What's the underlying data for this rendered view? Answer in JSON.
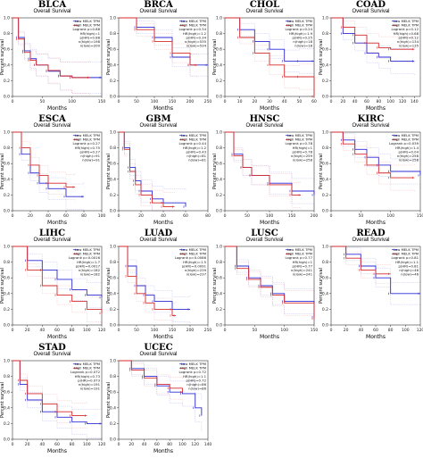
{
  "chart_data": [
    {
      "type": "line",
      "title": "BLCA",
      "subtitle": "Overall Survival",
      "xlabel": "Months",
      "ylabel": "Percent survival",
      "xlim": [
        0,
        150
      ],
      "ylim": [
        0,
        1
      ],
      "xticks": [
        0,
        50,
        100,
        150
      ],
      "yticks": [
        0,
        0.2,
        0.4,
        0.6,
        0.8,
        1.0
      ],
      "legend": [
        "Low MELK TPM",
        "High MELK TPM",
        "Logrank p=0.88",
        "HR(high)=1",
        "p(HR)=0.88",
        "n(high)=198",
        "n(low)=200"
      ],
      "series": [
        {
          "name": "Low MELK TPM",
          "color": "#2b2bd6",
          "x": [
            0,
            10,
            20,
            30,
            40,
            60,
            80,
            100,
            150
          ],
          "y": [
            1,
            0.75,
            0.58,
            0.48,
            0.4,
            0.32,
            0.26,
            0.24,
            0.24
          ]
        },
        {
          "name": "High MELK TPM",
          "color": "#d62b2b",
          "x": [
            0,
            10,
            20,
            30,
            40,
            60,
            80,
            100,
            130
          ],
          "y": [
            1,
            0.73,
            0.56,
            0.46,
            0.4,
            0.33,
            0.26,
            0.24,
            0.24
          ]
        }
      ]
    },
    {
      "type": "line",
      "title": "BRCA",
      "subtitle": "Overall Survival",
      "xlabel": "Months",
      "ylabel": "Percent survival",
      "xlim": [
        0,
        250
      ],
      "ylim": [
        0,
        1
      ],
      "xticks": [
        0,
        50,
        100,
        150,
        200,
        250
      ],
      "yticks": [
        0,
        0.2,
        0.4,
        0.6,
        0.8,
        1.0
      ],
      "legend": [
        "Low MELK TPM",
        "High MELK TPM",
        "Logrank p=0.34",
        "HR(high)=1.2",
        "p(HR)=0.34",
        "n(high)=535",
        "n(low)=534"
      ],
      "series": [
        {
          "name": "Low MELK TPM",
          "color": "#2b2bd6",
          "x": [
            0,
            50,
            100,
            150,
            200,
            250
          ],
          "y": [
            1,
            0.88,
            0.75,
            0.5,
            0.4,
            0.4
          ]
        },
        {
          "name": "High MELK TPM",
          "color": "#d62b2b",
          "x": [
            0,
            50,
            100,
            150,
            200,
            220
          ],
          "y": [
            1,
            0.85,
            0.7,
            0.55,
            0.4,
            0.4
          ]
        }
      ]
    },
    {
      "type": "line",
      "title": "CHOL",
      "subtitle": "Overall Survival",
      "xlabel": "Months",
      "ylabel": "Percent survival",
      "xlim": [
        0,
        60
      ],
      "ylim": [
        0,
        1
      ],
      "xticks": [
        0,
        10,
        20,
        30,
        40,
        50,
        60
      ],
      "yticks": [
        0,
        0.2,
        0.4,
        0.6,
        0.8,
        1.0
      ],
      "legend": [
        "Low MELK TPM",
        "High MELK TPM",
        "Logrank p=0.24",
        "HR(high)=1.9",
        "p(HR)=0.25",
        "n(high)=18",
        "n(low)=18"
      ],
      "series": [
        {
          "name": "Low MELK TPM",
          "color": "#2b2bd6",
          "x": [
            0,
            10,
            20,
            30,
            40,
            50,
            60
          ],
          "y": [
            1,
            0.85,
            0.7,
            0.6,
            0.45,
            0.45,
            0.45
          ]
        },
        {
          "name": "High MELK TPM",
          "color": "#d62b2b",
          "x": [
            0,
            10,
            20,
            30,
            40,
            50,
            60
          ],
          "y": [
            1,
            0.75,
            0.55,
            0.4,
            0.25,
            0.25,
            0.0
          ]
        }
      ]
    },
    {
      "type": "line",
      "title": "COAD",
      "subtitle": "Overall Survival",
      "xlabel": "Months",
      "ylabel": "Percent survival",
      "xlim": [
        0,
        150
      ],
      "ylim": [
        0,
        1
      ],
      "xticks": [
        0,
        20,
        40,
        60,
        80,
        100,
        120,
        140
      ],
      "yticks": [
        0,
        0.2,
        0.4,
        0.6,
        0.8,
        1.0
      ],
      "legend": [
        "Low MELK TPM",
        "High MELK TPM",
        "Logrank p=0.12",
        "HR(high)=0.68",
        "p(HR)=0.12",
        "n(high)=134",
        "n(low)=135"
      ],
      "series": [
        {
          "name": "Low MELK TPM",
          "color": "#2b2bd6",
          "x": [
            0,
            20,
            40,
            60,
            80,
            100,
            140
          ],
          "y": [
            1,
            0.8,
            0.68,
            0.55,
            0.5,
            0.45,
            0.45
          ]
        },
        {
          "name": "High MELK TPM",
          "color": "#d62b2b",
          "x": [
            0,
            20,
            40,
            60,
            80,
            100,
            140
          ],
          "y": [
            1,
            0.88,
            0.78,
            0.68,
            0.62,
            0.6,
            0.6
          ]
        }
      ]
    },
    {
      "type": "line",
      "title": "ESCA",
      "subtitle": "Overall Survival",
      "xlabel": "Months",
      "ylabel": "Percent survival",
      "xlim": [
        0,
        100
      ],
      "ylim": [
        0,
        1
      ],
      "xticks": [
        0,
        20,
        40,
        60,
        80,
        100
      ],
      "yticks": [
        0,
        0.2,
        0.4,
        0.6,
        0.8,
        1.0
      ],
      "legend": [
        "Low MELK TPM",
        "High MELK TPM",
        "Logrank p=0.27",
        "HR(high)=0.75",
        "p(HR)=0.27",
        "n(high)=91",
        "n(low)=91"
      ],
      "series": [
        {
          "name": "Low MELK TPM",
          "color": "#2b2bd6",
          "x": [
            0,
            10,
            20,
            30,
            40,
            60,
            80
          ],
          "y": [
            1,
            0.72,
            0.48,
            0.35,
            0.28,
            0.18,
            0.18
          ]
        },
        {
          "name": "High MELK TPM",
          "color": "#d62b2b",
          "x": [
            0,
            10,
            20,
            30,
            40,
            60,
            70
          ],
          "y": [
            1,
            0.8,
            0.58,
            0.45,
            0.35,
            0.3,
            0.3
          ]
        }
      ]
    },
    {
      "type": "line",
      "title": "GBM",
      "subtitle": "Overall Survival",
      "xlabel": "Months",
      "ylabel": "Percent survival",
      "xlim": [
        0,
        80
      ],
      "ylim": [
        0,
        1
      ],
      "xticks": [
        0,
        20,
        40,
        60,
        80
      ],
      "yticks": [
        0,
        0.2,
        0.4,
        0.6,
        0.8,
        1.0
      ],
      "legend": [
        "Low MELK TPM",
        "High MELK TPM",
        "Logrank p=0.44",
        "HR(high)=1.2",
        "p(HR)=0.43",
        "n(high)=81",
        "n(low)=81"
      ],
      "series": [
        {
          "name": "Low MELK TPM",
          "color": "#2b2bd6",
          "x": [
            0,
            5,
            10,
            15,
            20,
            30,
            40,
            60
          ],
          "y": [
            1,
            0.8,
            0.55,
            0.38,
            0.25,
            0.15,
            0.1,
            0.05
          ]
        },
        {
          "name": "High MELK TPM",
          "color": "#d62b2b",
          "x": [
            0,
            5,
            10,
            15,
            20,
            30,
            40,
            50
          ],
          "y": [
            1,
            0.78,
            0.5,
            0.33,
            0.2,
            0.1,
            0.05,
            0.05
          ]
        }
      ]
    },
    {
      "type": "line",
      "title": "HNSC",
      "subtitle": "Overall Survival",
      "xlabel": "Months",
      "ylabel": "Percent survival",
      "xlim": [
        0,
        200
      ],
      "ylim": [
        0,
        1
      ],
      "xticks": [
        0,
        50,
        100,
        150,
        200
      ],
      "yticks": [
        0,
        0.2,
        0.4,
        0.6,
        0.8,
        1.0
      ],
      "legend": [
        "Low MELK TPM",
        "High MELK TPM",
        "Logrank p=0.78",
        "HR(high)=1",
        "p(HR)=0.78",
        "n(high)=259",
        "n(low)=258"
      ],
      "series": [
        {
          "name": "Low MELK TPM",
          "color": "#2b2bd6",
          "x": [
            0,
            20,
            40,
            60,
            100,
            150,
            200
          ],
          "y": [
            1,
            0.72,
            0.55,
            0.45,
            0.35,
            0.25,
            0.2
          ]
        },
        {
          "name": "High MELK TPM",
          "color": "#d62b2b",
          "x": [
            0,
            20,
            40,
            60,
            100,
            150,
            170
          ],
          "y": [
            1,
            0.7,
            0.55,
            0.45,
            0.33,
            0.2,
            0.2
          ]
        }
      ]
    },
    {
      "type": "line",
      "title": "KIRC",
      "subtitle": "Overall Survival",
      "xlabel": "Months",
      "ylabel": "Percent survival",
      "xlim": [
        0,
        150
      ],
      "ylim": [
        0,
        1
      ],
      "xticks": [
        0,
        50,
        100,
        150
      ],
      "yticks": [
        0,
        0.2,
        0.4,
        0.6,
        0.8,
        1.0
      ],
      "legend": [
        "Low MELK TPM",
        "High MELK TPM",
        "Logrank p=0.039",
        "HR(high)=1.4",
        "p(HR)=0.04",
        "n(high)=258",
        "n(low)=258"
      ],
      "series": [
        {
          "name": "Low MELK TPM",
          "color": "#2b2bd6",
          "x": [
            0,
            20,
            40,
            60,
            80,
            100,
            150
          ],
          "y": [
            1,
            0.9,
            0.78,
            0.68,
            0.58,
            0.5,
            0.45
          ]
        },
        {
          "name": "High MELK TPM",
          "color": "#d62b2b",
          "x": [
            0,
            20,
            40,
            60,
            80,
            100,
            140
          ],
          "y": [
            1,
            0.85,
            0.72,
            0.58,
            0.48,
            0.42,
            0.42
          ]
        }
      ]
    },
    {
      "type": "line",
      "title": "LIHC",
      "subtitle": "Overall Survival",
      "xlabel": "Months",
      "ylabel": "Percent survival",
      "xlim": [
        0,
        120
      ],
      "ylim": [
        0,
        1
      ],
      "xticks": [
        0,
        20,
        40,
        60,
        80,
        100,
        120
      ],
      "yticks": [
        0,
        0.2,
        0.4,
        0.6,
        0.8,
        1.0
      ],
      "legend": [
        "Low MELK TPM",
        "High MELK TPM",
        "Logrank p=0.0016",
        "HR(high)=1.7",
        "p(HR)=0.0017",
        "n(high)=182",
        "n(low)=182"
      ],
      "series": [
        {
          "name": "Low MELK TPM",
          "color": "#2b2bd6",
          "x": [
            0,
            20,
            40,
            60,
            80,
            100,
            120
          ],
          "y": [
            1,
            0.82,
            0.7,
            0.58,
            0.45,
            0.38,
            0.35
          ]
        },
        {
          "name": "High MELK TPM",
          "color": "#d62b2b",
          "x": [
            0,
            20,
            40,
            60,
            80,
            100,
            120
          ],
          "y": [
            1,
            0.7,
            0.5,
            0.38,
            0.3,
            0.2,
            0.15
          ]
        }
      ]
    },
    {
      "type": "line",
      "title": "LUAD",
      "subtitle": "Overall Survival",
      "xlabel": "Months",
      "ylabel": "Percent survival",
      "xlim": [
        0,
        250
      ],
      "ylim": [
        0,
        1
      ],
      "xticks": [
        0,
        50,
        100,
        150,
        200,
        250
      ],
      "yticks": [
        0,
        0.2,
        0.4,
        0.6,
        0.8,
        1.0
      ],
      "legend": [
        "Low MELK TPM",
        "High MELK TPM",
        "Logrank p=0.0086",
        "HR(high)=1.5",
        "p(HR)=0.0091",
        "n(high)=239",
        "n(low)=237"
      ],
      "series": [
        {
          "name": "Low MELK TPM",
          "color": "#2b2bd6",
          "x": [
            0,
            25,
            50,
            75,
            100,
            150,
            200
          ],
          "y": [
            1,
            0.75,
            0.5,
            0.38,
            0.3,
            0.2,
            0.2
          ]
        },
        {
          "name": "High MELK TPM",
          "color": "#d62b2b",
          "x": [
            0,
            25,
            50,
            75,
            100,
            150,
            160
          ],
          "y": [
            1,
            0.62,
            0.4,
            0.28,
            0.2,
            0.12,
            0.12
          ]
        }
      ]
    },
    {
      "type": "line",
      "title": "LUSC",
      "subtitle": "Overall Survival",
      "xlabel": "Months",
      "ylabel": "Percent survival",
      "xlim": [
        0,
        150
      ],
      "ylim": [
        0,
        1
      ],
      "xticks": [
        0,
        50,
        100,
        150
      ],
      "yticks": [
        0,
        0.2,
        0.4,
        0.6,
        0.8,
        1.0
      ],
      "legend": [
        "Low MELK TPM",
        "High MELK TPM",
        "Logrank p=0.77",
        "HR(high)=1",
        "p(HR)=0.77",
        "n(high)=241",
        "n(low)=241"
      ],
      "series": [
        {
          "name": "Low MELK TPM",
          "color": "#2b2bd6",
          "x": [
            0,
            20,
            40,
            60,
            80,
            100,
            150
          ],
          "y": [
            1,
            0.75,
            0.6,
            0.5,
            0.4,
            0.3,
            0.1
          ]
        },
        {
          "name": "High MELK TPM",
          "color": "#d62b2b",
          "x": [
            0,
            20,
            40,
            60,
            80,
            100,
            150
          ],
          "y": [
            1,
            0.72,
            0.58,
            0.48,
            0.38,
            0.28,
            0.08
          ]
        }
      ]
    },
    {
      "type": "line",
      "title": "READ",
      "subtitle": "Overall Survival",
      "xlabel": "Months",
      "ylabel": "Percent survival",
      "xlim": [
        0,
        120
      ],
      "ylim": [
        0,
        1
      ],
      "xticks": [
        0,
        20,
        40,
        60,
        80,
        100,
        120
      ],
      "yticks": [
        0,
        0.2,
        0.4,
        0.6,
        0.8,
        1.0
      ],
      "legend": [
        "Low MELK TPM",
        "High MELK TPM",
        "Logrank p=0.81",
        "HR(high)=1.1",
        "p(HR)=0.81",
        "n(high)=46",
        "n(low)=46"
      ],
      "series": [
        {
          "name": "Low MELK TPM",
          "color": "#2b2bd6",
          "x": [
            0,
            20,
            40,
            60,
            80,
            120
          ],
          "y": [
            1,
            0.9,
            0.75,
            0.6,
            0.4,
            0.4
          ]
        },
        {
          "name": "High MELK TPM",
          "color": "#d62b2b",
          "x": [
            0,
            20,
            40,
            60,
            80
          ],
          "y": [
            1,
            0.85,
            0.7,
            0.65,
            0.65
          ]
        }
      ]
    },
    {
      "type": "line",
      "title": "STAD",
      "subtitle": "Overall Survival",
      "xlabel": "Months",
      "ylabel": "Percent survival",
      "xlim": [
        0,
        120
      ],
      "ylim": [
        0,
        1
      ],
      "xticks": [
        0,
        20,
        40,
        60,
        80,
        100,
        120
      ],
      "yticks": [
        0,
        0.2,
        0.4,
        0.6,
        0.8,
        1.0
      ],
      "legend": [
        "Low MELK TPM",
        "High MELK TPM",
        "Logrank p=0.072",
        "HR(high)=0.73",
        "p(HR)=0.073",
        "n(high)=191",
        "n(low)=191"
      ],
      "series": [
        {
          "name": "Low MELK TPM",
          "color": "#2b2bd6",
          "x": [
            0,
            10,
            20,
            40,
            60,
            80,
            100,
            120
          ],
          "y": [
            1,
            0.7,
            0.5,
            0.35,
            0.28,
            0.22,
            0.2,
            0.2
          ]
        },
        {
          "name": "High MELK TPM",
          "color": "#d62b2b",
          "x": [
            0,
            10,
            20,
            40,
            60,
            80,
            100
          ],
          "y": [
            1,
            0.75,
            0.58,
            0.45,
            0.35,
            0.3,
            0.3
          ]
        }
      ]
    },
    {
      "type": "line",
      "title": "UCEC",
      "subtitle": "Overall Survival",
      "xlabel": "Months",
      "ylabel": "Percent survival",
      "xlim": [
        0,
        140
      ],
      "ylim": [
        0,
        1
      ],
      "xticks": [
        0,
        20,
        40,
        60,
        80,
        100,
        120,
        140
      ],
      "yticks": [
        0,
        0.2,
        0.4,
        0.6,
        0.8,
        1.0
      ],
      "legend": [
        "Low MELK TPM",
        "High MELK TPM",
        "Logrank p=0.72",
        "HR(high)=1.1",
        "p(HR)=0.72",
        "n(high)=86",
        "n(low)=86"
      ],
      "series": [
        {
          "name": "Low MELK TPM",
          "color": "#2b2bd6",
          "x": [
            0,
            20,
            40,
            60,
            80,
            100,
            120,
            130
          ],
          "y": [
            1,
            0.9,
            0.8,
            0.68,
            0.6,
            0.58,
            0.4,
            0.3
          ]
        },
        {
          "name": "High MELK TPM",
          "color": "#d62b2b",
          "x": [
            0,
            20,
            40,
            60,
            80,
            100
          ],
          "y": [
            1,
            0.88,
            0.78,
            0.7,
            0.65,
            0.6
          ]
        }
      ]
    }
  ]
}
